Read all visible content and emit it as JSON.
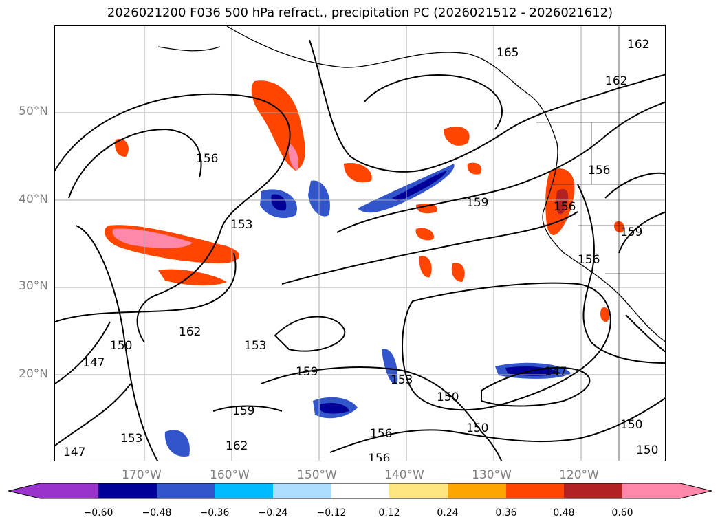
{
  "title": "2026021200 F036 500 hPa refract., precipitation PC (2026021512 - 2026021612)",
  "lat_labels": [
    "50°N",
    "40°N",
    "30°N",
    "20°N"
  ],
  "lon_labels": [
    "170°W",
    "160°W",
    "150°W",
    "140°W",
    "130°W",
    "120°W"
  ],
  "contour_labels": [
    "165",
    "162",
    "162",
    "156",
    "159",
    "153",
    "156",
    "156",
    "156",
    "159",
    "162",
    "150",
    "147",
    "153",
    "159",
    "153",
    "150",
    "147",
    "159",
    "162",
    "153",
    "147",
    "156",
    "150",
    "150",
    "156",
    "150"
  ],
  "colorbar": {
    "ticks": [
      "−0.60",
      "−0.48",
      "−0.36",
      "−0.24",
      "−0.12",
      "0.12",
      "0.24",
      "0.36",
      "0.48",
      "0.60"
    ],
    "colors": [
      "#9933cc",
      "#000099",
      "#3355cc",
      "#00bbff",
      "#aaddff",
      "#ffffff",
      "#ffe680",
      "#ffa500",
      "#ff4500",
      "#b22222",
      "#ff88aa"
    ]
  },
  "colors": {
    "contour": "#000000",
    "coastline": "#000000",
    "grid": "#aaaaaa",
    "axis_label": "#7f7f7f"
  }
}
